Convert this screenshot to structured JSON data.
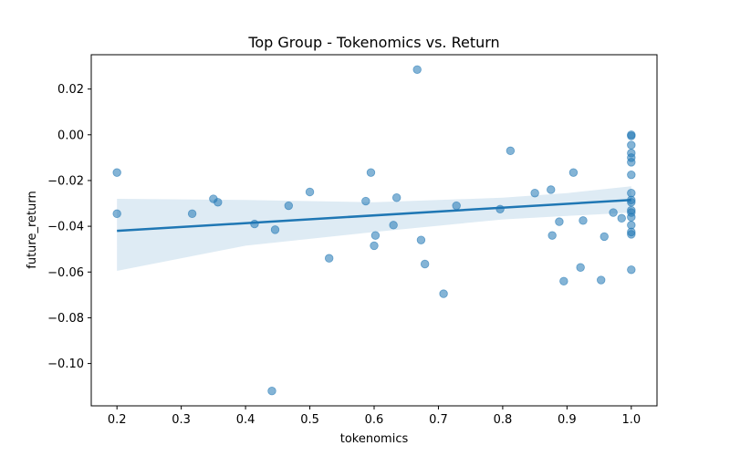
{
  "chart_data": {
    "type": "scatter",
    "title": "Top Group - Tokenomics vs. Return",
    "xlabel": "tokenomics",
    "ylabel": "future_return",
    "xlim": [
      0.16,
      1.04
    ],
    "ylim": [
      -0.1185,
      0.035
    ],
    "x_ticks": [
      0.2,
      0.3,
      0.4,
      0.5,
      0.6,
      0.7,
      0.8,
      0.9,
      1.0
    ],
    "x_tick_labels": [
      "0.2",
      "0.3",
      "0.4",
      "0.5",
      "0.6",
      "0.7",
      "0.8",
      "0.9",
      "1.0"
    ],
    "y_ticks": [
      0.02,
      0.0,
      -0.02,
      -0.04,
      -0.06,
      -0.08,
      -0.1
    ],
    "y_tick_labels": [
      "0.02",
      "0.00",
      "−0.02",
      "−0.04",
      "−0.06",
      "−0.08",
      "−0.10"
    ],
    "grid": false,
    "colors": {
      "points": "#1f77b4",
      "regression_line": "#1f77b4",
      "confidence_band": "#1f77b4"
    },
    "series": [
      {
        "kind": "points",
        "points": [
          [
            0.2,
            -0.0165
          ],
          [
            0.2,
            -0.0345
          ],
          [
            0.317,
            -0.0345
          ],
          [
            0.35,
            -0.028
          ],
          [
            0.357,
            -0.0295
          ],
          [
            0.414,
            -0.039
          ],
          [
            0.441,
            -0.112
          ],
          [
            0.446,
            -0.0415
          ],
          [
            0.467,
            -0.031
          ],
          [
            0.5,
            -0.025
          ],
          [
            0.53,
            -0.054
          ],
          [
            0.587,
            -0.029
          ],
          [
            0.595,
            -0.0165
          ],
          [
            0.6,
            -0.0485
          ],
          [
            0.602,
            -0.044
          ],
          [
            0.63,
            -0.0395
          ],
          [
            0.635,
            -0.0275
          ],
          [
            0.667,
            0.0285
          ],
          [
            0.673,
            -0.046
          ],
          [
            0.679,
            -0.0565
          ],
          [
            0.708,
            -0.0695
          ],
          [
            0.728,
            -0.031
          ],
          [
            0.796,
            -0.0325
          ],
          [
            0.812,
            -0.007
          ],
          [
            0.85,
            -0.0255
          ],
          [
            0.875,
            -0.024
          ],
          [
            0.877,
            -0.044
          ],
          [
            0.888,
            -0.038
          ],
          [
            0.895,
            -0.064
          ],
          [
            0.91,
            -0.0165
          ],
          [
            0.921,
            -0.058
          ],
          [
            0.925,
            -0.0375
          ],
          [
            0.953,
            -0.0635
          ],
          [
            0.958,
            -0.0445
          ],
          [
            0.972,
            -0.034
          ],
          [
            0.985,
            -0.0365
          ],
          [
            1.0,
            0.0
          ],
          [
            1.0,
            -0.0005
          ],
          [
            1.0,
            -0.0045
          ],
          [
            1.0,
            -0.008
          ],
          [
            1.0,
            -0.01
          ],
          [
            1.0,
            -0.012
          ],
          [
            1.0,
            -0.0175
          ],
          [
            1.0,
            -0.0255
          ],
          [
            1.0,
            -0.0285
          ],
          [
            1.0,
            -0.0295
          ],
          [
            1.0,
            -0.033
          ],
          [
            1.0,
            -0.034
          ],
          [
            1.0,
            -0.036
          ],
          [
            1.0,
            -0.0395
          ],
          [
            1.0,
            -0.0425
          ],
          [
            1.0,
            -0.0435
          ],
          [
            1.0,
            -0.059
          ]
        ]
      },
      {
        "kind": "regression_line",
        "x": [
          0.2,
          1.0
        ],
        "y": [
          -0.042,
          -0.0285
        ]
      },
      {
        "kind": "confidence_band",
        "x": [
          0.2,
          0.4,
          0.6,
          0.8,
          0.9,
          1.0
        ],
        "upper": [
          -0.028,
          -0.0285,
          -0.0295,
          -0.0275,
          -0.0255,
          -0.0225
        ],
        "lower": [
          -0.0595,
          -0.0485,
          -0.0425,
          -0.037,
          -0.0355,
          -0.034
        ]
      }
    ]
  }
}
